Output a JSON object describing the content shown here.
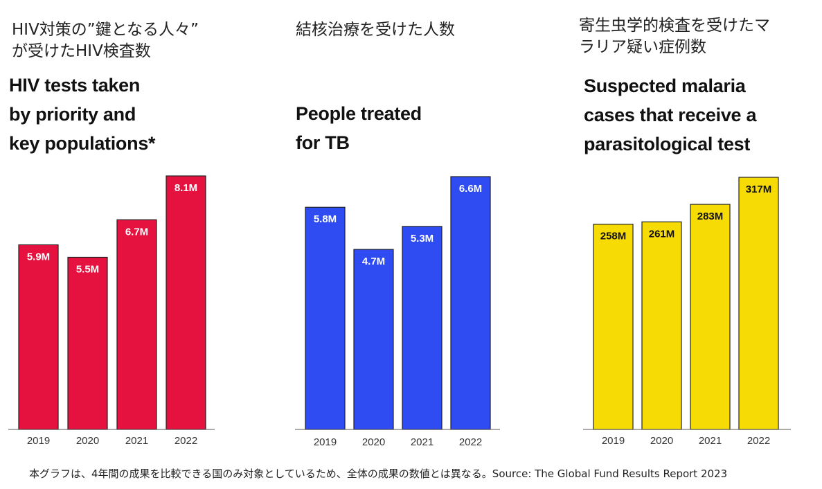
{
  "chart_data": [
    {
      "type": "bar",
      "title_ja": [
        "HIV対策の”鍵となる人々”",
        "が受けたHIV検査数"
      ],
      "title": [
        "HIV tests taken",
        "by priority and",
        "key populations*"
      ],
      "categories": [
        "2019",
        "2020",
        "2021",
        "2022"
      ],
      "values": [
        5.9,
        5.5,
        6.7,
        8.1
      ],
      "value_labels": [
        "5.9M",
        "5.5M",
        "6.7M",
        "8.1M"
      ],
      "unit": "M",
      "ylim": [
        0,
        8.1
      ],
      "color": "#e5123f",
      "label_color": "#ffffff"
    },
    {
      "type": "bar",
      "title_ja": [
        "結核治療を受けた人数"
      ],
      "title": [
        "People treated",
        "for TB"
      ],
      "categories": [
        "2019",
        "2020",
        "2021",
        "2022"
      ],
      "values": [
        5.8,
        4.7,
        5.3,
        6.6
      ],
      "value_labels": [
        "5.8M",
        "4.7M",
        "5.3M",
        "6.6M"
      ],
      "unit": "M",
      "ylim": [
        0,
        6.6
      ],
      "color": "#2e4cf2",
      "label_color": "#ffffff"
    },
    {
      "type": "bar",
      "title_ja": [
        "寄生虫学的検査を受けたマ",
        "ラリア疑い症例数"
      ],
      "title": [
        "Suspected malaria",
        "cases that receive a",
        "parasitological test"
      ],
      "categories": [
        "2019",
        "2020",
        "2021",
        "2022"
      ],
      "values": [
        258,
        261,
        283,
        317
      ],
      "value_labels": [
        "258M",
        "261M",
        "283M",
        "317M"
      ],
      "unit": "M",
      "ylim": [
        0,
        317
      ],
      "color": "#f7db05",
      "label_color": "#111111"
    }
  ],
  "footnote": "本グラフは、4年間の成果を比較できる国のみ対象としているため、全体の成果の数値とは異なる。Source: The Global Fund Results Report 2023"
}
